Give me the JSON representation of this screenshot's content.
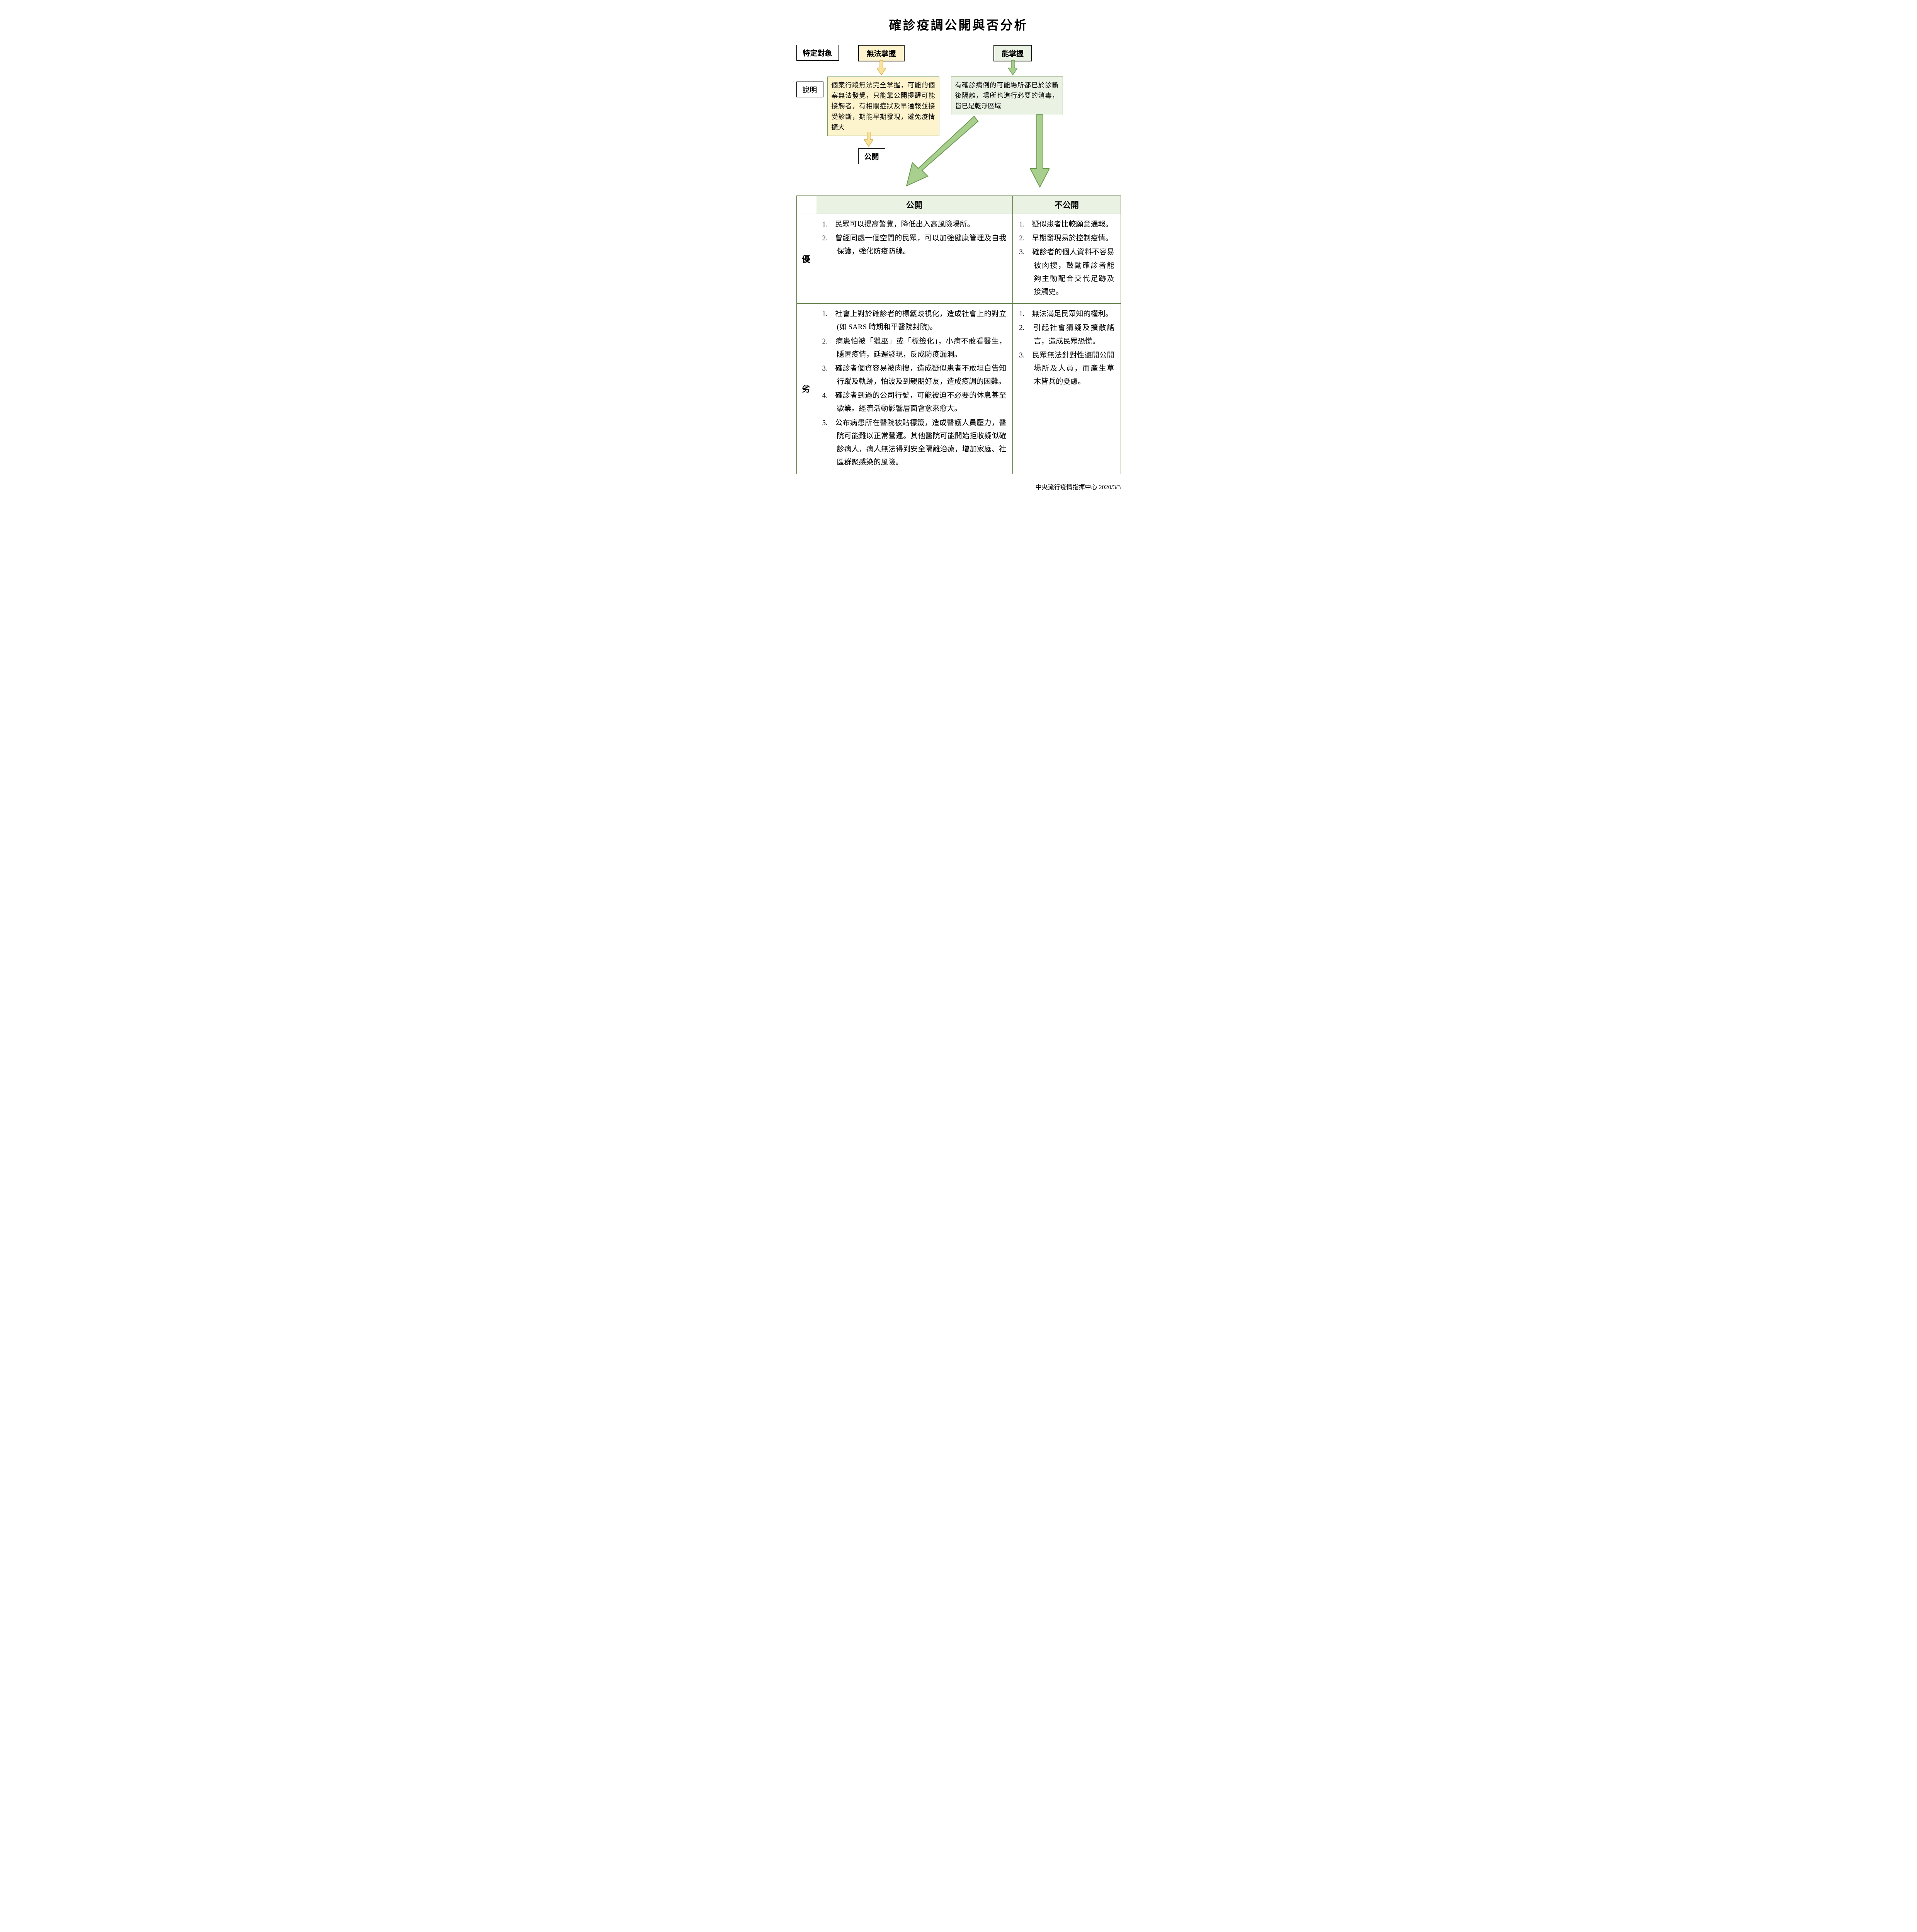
{
  "title": "確診疫調公開與否分析",
  "flow": {
    "specific_target_label": "特定對象",
    "cannot_control_label": "無法掌握",
    "can_control_label": "能掌握",
    "explain_label": "說明",
    "cannot_explain": "個案行蹤無法完全掌握，可能的個案無法發覺，只能靠公開提醒可能接觸者，有相關症狀及早通報並接受診斷，期能早期發現，避免疫情擴大",
    "can_explain": "有確診病例的可能場所都已於診斷後隔離，場所也進行必要的消毒，皆已是乾淨區域",
    "public_label": "公開"
  },
  "table": {
    "header_public": "公開",
    "header_nonpublic": "不公開",
    "row_adv": "優",
    "row_dis": "劣",
    "adv_public": [
      "民眾可以提高警覺，降低出入高風險場所。",
      "曾經同處一個空間的民眾，可以加強健康管理及自我保護，強化防疫防線。"
    ],
    "adv_nonpublic": [
      "疑似患者比較願意通報。",
      "早期發現易於控制疫情。",
      "確診者的個人資料不容易被肉搜，鼓勵確診者能夠主動配合交代足跡及接觸史。"
    ],
    "dis_public": [
      "社會上對於確診者的標籤歧視化，造成社會上的對立(如 SARS 時期和平醫院封院)。",
      "病患怕被「獵巫」或「標籤化」，小病不敢看醫生，隱匿疫情，延遲發現，反成防疫漏洞。",
      "確診者個資容易被肉搜，造成疑似患者不敢坦白告知行蹤及軌跡，怕波及到親朋好友，造成疫調的困難。",
      "確診者到過的公司行號，可能被迫不必要的休息甚至歇業。經濟活動影響層面會愈來愈大。",
      "公布病患所在醫院被貼標籤，造成醫護人員壓力，醫院可能難以正常營運。其他醫院可能開始拒收疑似確診病人，病人無法得到安全隔離治療，增加家庭、社區群聚感染的風險。"
    ],
    "dis_nonpublic": [
      "無法滿足民眾知的權利。",
      "引起社會猜疑及擴散謠言，造成民眾恐慌。",
      "民眾無法針對性避開公開場所及人員，而產生草木皆兵的憂慮。"
    ]
  },
  "footer": "中央流行疫情指揮中心  2020/3/3",
  "colors": {
    "border_green": "#5c7a3f",
    "fill_yellow": "#fdf3cc",
    "fill_green": "#eaf2e3",
    "arrow_yellow_fill": "#f9e29c",
    "arrow_yellow_stroke": "#d6b24a",
    "arrow_green_fill": "#a8cf8e",
    "arrow_green_stroke": "#6a9a4f"
  }
}
